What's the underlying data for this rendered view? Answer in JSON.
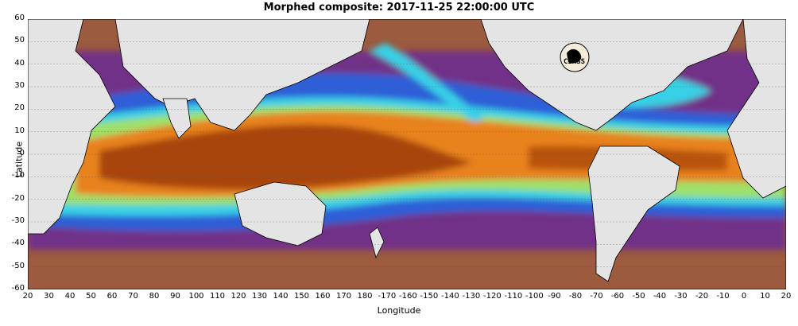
{
  "title": "Morphed composite: 2017-11-25 22:00:00 UTC",
  "xlabel": "Longitude",
  "ylabel": "Latitude",
  "x_ticks": [
    "20",
    "30",
    "40",
    "50",
    "60",
    "70",
    "80",
    "90",
    "100",
    "110",
    "120",
    "130",
    "140",
    "150",
    "160",
    "170",
    "180",
    "-170",
    "-160",
    "-150",
    "-140",
    "-130",
    "-120",
    "-110",
    "-100",
    "-90",
    "-80",
    "-70",
    "-60",
    "-50",
    "-40",
    "-30",
    "-20",
    "-10",
    "0",
    "10",
    "20"
  ],
  "y_ticks": [
    "60",
    "50",
    "40",
    "30",
    "20",
    "10",
    "0",
    "-10",
    "-20",
    "-30",
    "-40",
    "-50",
    "-60"
  ],
  "logo": {
    "text": "CIMSS",
    "icon": "cimss-logo-icon"
  },
  "colors": {
    "land": "#e4e4e4",
    "tropical_core": "#a84408",
    "moist": "#e8821e",
    "mid": "#39d0e6",
    "dry_blue": "#2f5fd8",
    "dry_purple": "#6a2a9a",
    "very_dry": "#a0603e"
  }
}
